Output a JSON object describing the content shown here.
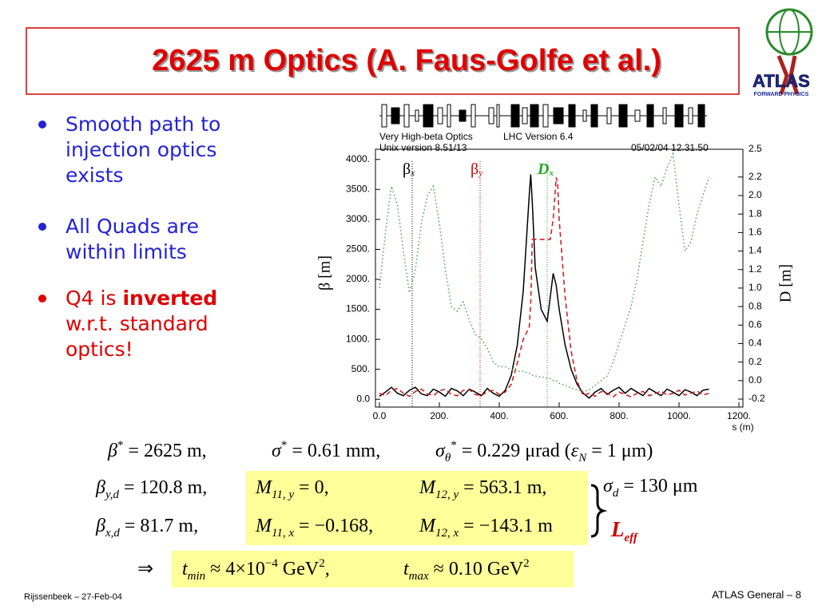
{
  "title": "2625 m Optics (A. Faus-Golfe et al.)",
  "logo": {
    "text": "ATLAS",
    "subtext": "FORWARD PHYSICS"
  },
  "bullets": [
    {
      "parts": [
        {
          "text": "Smooth path to injection optics exists",
          "bold": false
        }
      ],
      "color": "#2323d8"
    },
    {
      "parts": [
        {
          "text": "All Quads are within limits",
          "bold": false
        }
      ],
      "color": "#2323d8"
    },
    {
      "parts": [
        {
          "text": "Q4 is ",
          "bold": false
        },
        {
          "text": "inverted",
          "bold": true
        },
        {
          "text": " w.r.t. standard optics!",
          "bold": false
        }
      ],
      "color": "#e00000"
    }
  ],
  "chart_data": {
    "type": "line",
    "header": [
      "Very High-beta Optics",
      "LHC Version 6.4",
      "Unix version 8.51/13",
      "05/02/04  12.31.50"
    ],
    "x_label": "s (m)",
    "y_label": "β  [m]",
    "y2_label": "D  [m]",
    "annotations": [
      {
        "text": "β",
        "sub": "x",
        "color": "#000000"
      },
      {
        "text": "β",
        "sub": "y",
        "color": "#cc0000"
      },
      {
        "text": "D",
        "sub": "x",
        "color": "#22aa22"
      }
    ],
    "xlim": [
      0,
      1200
    ],
    "ylim": [
      -130,
      4170
    ],
    "y2lim": [
      -0.286,
      2.5
    ],
    "xticks": [
      {
        "value": 0,
        "label": "0.0"
      },
      {
        "value": 200,
        "label": "200."
      },
      {
        "value": 400,
        "label": "400."
      },
      {
        "value": 600,
        "label": "600."
      },
      {
        "value": 800,
        "label": "800."
      },
      {
        "value": 1000,
        "label": "1000."
      },
      {
        "value": 1200,
        "label": "1200."
      }
    ],
    "yticks": [
      {
        "value": 0,
        "label": "0.0"
      },
      {
        "value": 500,
        "label": "500."
      },
      {
        "value": 1000,
        "label": "1000."
      },
      {
        "value": 1500,
        "label": "1500."
      },
      {
        "value": 2000,
        "label": "2000."
      },
      {
        "value": 2500,
        "label": "2500."
      },
      {
        "value": 3000,
        "label": "3000."
      },
      {
        "value": 3500,
        "label": "3500."
      },
      {
        "value": 4000,
        "label": "4000."
      }
    ],
    "y2ticks": [
      -0.2,
      {
        "value": 0,
        "label": "0.0"
      },
      0.2,
      0.4,
      0.6,
      0.8,
      {
        "value": 1,
        "label": "1.0"
      },
      1.2,
      1.4,
      1.6,
      1.8,
      {
        "value": 2,
        "label": "2.0"
      },
      2.2,
      2.5
    ],
    "x": [
      0,
      20,
      40,
      60,
      80,
      100,
      120,
      140,
      160,
      180,
      200,
      220,
      240,
      260,
      280,
      300,
      320,
      340,
      360,
      380,
      400,
      420,
      440,
      460,
      480,
      500,
      505,
      510,
      520,
      540,
      560,
      570,
      580,
      590,
      595,
      600,
      620,
      640,
      660,
      680,
      700,
      720,
      740,
      760,
      780,
      800,
      820,
      840,
      860,
      880,
      900,
      920,
      940,
      960,
      980,
      1000,
      1020,
      1040,
      1060,
      1080,
      1100
    ],
    "series": [
      {
        "name": "βx",
        "color": "#000000",
        "line_style": "solid",
        "values": [
          50,
          120,
          200,
          100,
          60,
          150,
          200,
          90,
          60,
          170,
          120,
          50,
          180,
          140,
          60,
          170,
          120,
          60,
          180,
          100,
          50,
          150,
          400,
          900,
          1800,
          3400,
          3750,
          3300,
          2200,
          1500,
          1300,
          1700,
          2100,
          1900,
          1700,
          1500,
          900,
          500,
          250,
          100,
          20,
          120,
          180,
          80,
          150,
          200,
          100,
          180,
          120,
          60,
          180,
          120,
          60,
          170,
          120,
          60,
          160,
          120,
          60,
          150,
          170
        ]
      },
      {
        "name": "βy",
        "color": "#cc2222",
        "line_style": "dashed",
        "values": [
          100,
          60,
          150,
          180,
          100,
          50,
          130,
          170,
          90,
          60,
          140,
          170,
          80,
          60,
          150,
          160,
          80,
          60,
          130,
          150,
          80,
          120,
          250,
          600,
          1000,
          1200,
          1600,
          2667,
          2667,
          2667,
          2667,
          2667,
          3000,
          3700,
          3600,
          3000,
          1700,
          800,
          300,
          60,
          100,
          50,
          130,
          100,
          40,
          120,
          80,
          40,
          100,
          130,
          60,
          90,
          140,
          70,
          100,
          150,
          70,
          100,
          140,
          70,
          100
        ]
      },
      {
        "name": "D",
        "color": "#55aa55",
        "line_style": "dotted",
        "axis": "y2",
        "values": [
          1.0,
          1.6,
          2.1,
          1.9,
          1.4,
          0.95,
          1.2,
          1.7,
          2.0,
          2.1,
          1.7,
          1.2,
          0.8,
          0.75,
          0.85,
          0.65,
          0.5,
          0.45,
          0.35,
          0.2,
          0.15,
          0.15,
          0.12,
          0.1,
          0.1,
          0.08,
          0.07,
          0.06,
          0.05,
          0.04,
          0.03,
          0.02,
          0.0,
          0.0,
          -0.02,
          -0.03,
          -0.05,
          -0.08,
          -0.1,
          -0.12,
          -0.1,
          -0.05,
          0.0,
          0.05,
          0.2,
          0.4,
          0.6,
          0.8,
          1.1,
          1.5,
          1.9,
          2.2,
          2.1,
          2.3,
          2.45,
          1.9,
          1.4,
          1.5,
          1.8,
          2.0,
          2.2
        ]
      }
    ]
  },
  "equations": {
    "rows": [
      [
        [
          {
            "text": "β",
            "k": "i"
          },
          {
            "text": "*",
            "k": "sup"
          },
          {
            "text": " = 2625 m,",
            "k": "n"
          }
        ],
        [
          {
            "text": "σ",
            "k": "i"
          },
          {
            "text": "*",
            "k": "sup"
          },
          {
            "text": " = 0.61 mm,",
            "k": "n"
          }
        ],
        [
          {
            "text": "σ",
            "k": "i"
          },
          {
            "text": "θ",
            "k": "sub"
          },
          {
            "text": "*",
            "k": "sup"
          },
          {
            "text": " = 0.229 μrad (",
            "k": "n"
          },
          {
            "text": "ε",
            "k": "i"
          },
          {
            "text": "N",
            "k": "sub"
          },
          {
            "text": " = 1 μm)",
            "k": "n"
          }
        ]
      ],
      [
        [
          {
            "text": "β",
            "k": "i"
          },
          {
            "text": "y,d",
            "k": "sub"
          },
          {
            "text": " = 120.8 m,",
            "k": "n"
          }
        ],
        [
          {
            "text": "M",
            "k": "i"
          },
          {
            "text": "11, y",
            "k": "sub"
          },
          {
            "text": " = 0,",
            "k": "n"
          }
        ],
        [
          {
            "text": "M",
            "k": "i"
          },
          {
            "text": "12, y",
            "k": "sub"
          },
          {
            "text": " = 563.1 m,",
            "k": "n"
          }
        ]
      ],
      [
        [
          {
            "text": "β",
            "k": "i"
          },
          {
            "text": "x,d",
            "k": "sub"
          },
          {
            "text": " = 81.7 m,",
            "k": "n"
          }
        ],
        [
          {
            "text": "M",
            "k": "i"
          },
          {
            "text": "11, x",
            "k": "sub"
          },
          {
            "text": " = −0.168,",
            "k": "n"
          }
        ],
        [
          {
            "text": "M",
            "k": "i"
          },
          {
            "text": "12, x",
            "k": "sub"
          },
          {
            "text": " = −143.1 m",
            "k": "n"
          }
        ]
      ],
      [
        [
          {
            "text": "⇒",
            "k": "n"
          }
        ],
        [
          {
            "text": "t",
            "k": "i"
          },
          {
            "text": "min",
            "k": "sub"
          },
          {
            "text": " ≈ 4×10",
            "k": "n"
          },
          {
            "text": "−4",
            "k": "sup"
          },
          {
            "text": " GeV",
            "k": "n"
          },
          {
            "text": "2",
            "k": "sup"
          },
          {
            "text": ",",
            "k": "n"
          }
        ],
        [
          {
            "text": "t",
            "k": "i"
          },
          {
            "text": "max",
            "k": "sub"
          },
          {
            "text": " ≈ 0.10 GeV",
            "k": "n"
          },
          {
            "text": "2",
            "k": "sup"
          }
        ]
      ]
    ],
    "sigma_d": [
      {
        "text": "σ",
        "k": "i"
      },
      {
        "text": "d",
        "k": "sub"
      },
      {
        "text": " = 130 μm",
        "k": "n"
      }
    ],
    "l_eff": [
      {
        "text": "L",
        "k": "i"
      },
      {
        "text": "eff",
        "k": "sub"
      }
    ]
  },
  "footer": {
    "left": "Rijssenbeek – 27-Feb-04",
    "right": "ATLAS General – 8"
  }
}
